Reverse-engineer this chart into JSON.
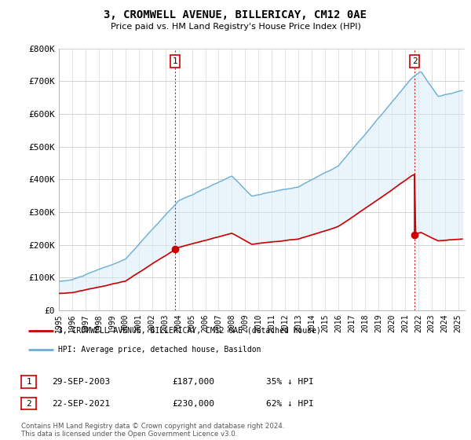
{
  "title": "3, CROMWELL AVENUE, BILLERICAY, CM12 0AE",
  "subtitle": "Price paid vs. HM Land Registry's House Price Index (HPI)",
  "ylabel_ticks": [
    "£0",
    "£100K",
    "£200K",
    "£300K",
    "£400K",
    "£500K",
    "£600K",
    "£700K",
    "£800K"
  ],
  "ylim": [
    0,
    800000
  ],
  "xlim_start": 1995.0,
  "xlim_end": 2025.5,
  "sale1_x": 2003.747,
  "sale1_y": 187000,
  "sale1_label": "1",
  "sale2_x": 2021.727,
  "sale2_y": 230000,
  "sale2_label": "2",
  "legend_line1": "3, CROMWELL AVENUE, BILLERICAY, CM12 0AE (detached house)",
  "legend_line2": "HPI: Average price, detached house, Basildon",
  "table_row1": [
    "1",
    "29-SEP-2003",
    "£187,000",
    "35% ↓ HPI"
  ],
  "table_row2": [
    "2",
    "22-SEP-2021",
    "£230,000",
    "62% ↓ HPI"
  ],
  "footnote": "Contains HM Land Registry data © Crown copyright and database right 2024.\nThis data is licensed under the Open Government Licence v3.0.",
  "line_color_property": "#cc0000",
  "line_color_hpi": "#6baed6",
  "fill_color_hpi": "#d6eaf8",
  "marker_color_property": "#cc0000",
  "background_color": "#ffffff",
  "grid_color": "#cccccc"
}
